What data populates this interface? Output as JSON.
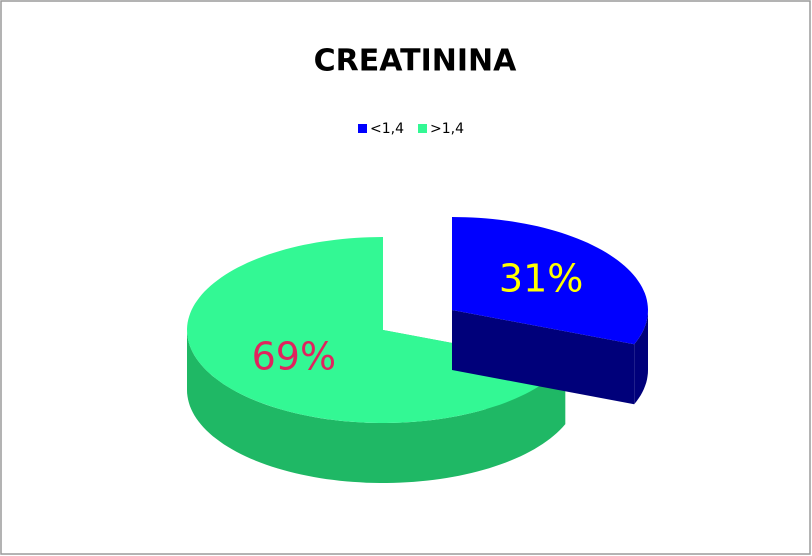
{
  "chart_data": {
    "type": "pie3d",
    "title": "CREATININA",
    "categories": [
      "<1,4",
      ">1,4"
    ],
    "values": [
      31,
      69
    ],
    "value_labels": [
      "31%",
      "69%"
    ],
    "colors": [
      "#0000ff",
      "#33f894"
    ],
    "side_colors": [
      "#00007a",
      "#1fb865"
    ],
    "label_colors": [
      "#ffff00",
      "#e0245e"
    ],
    "legend": "top"
  }
}
